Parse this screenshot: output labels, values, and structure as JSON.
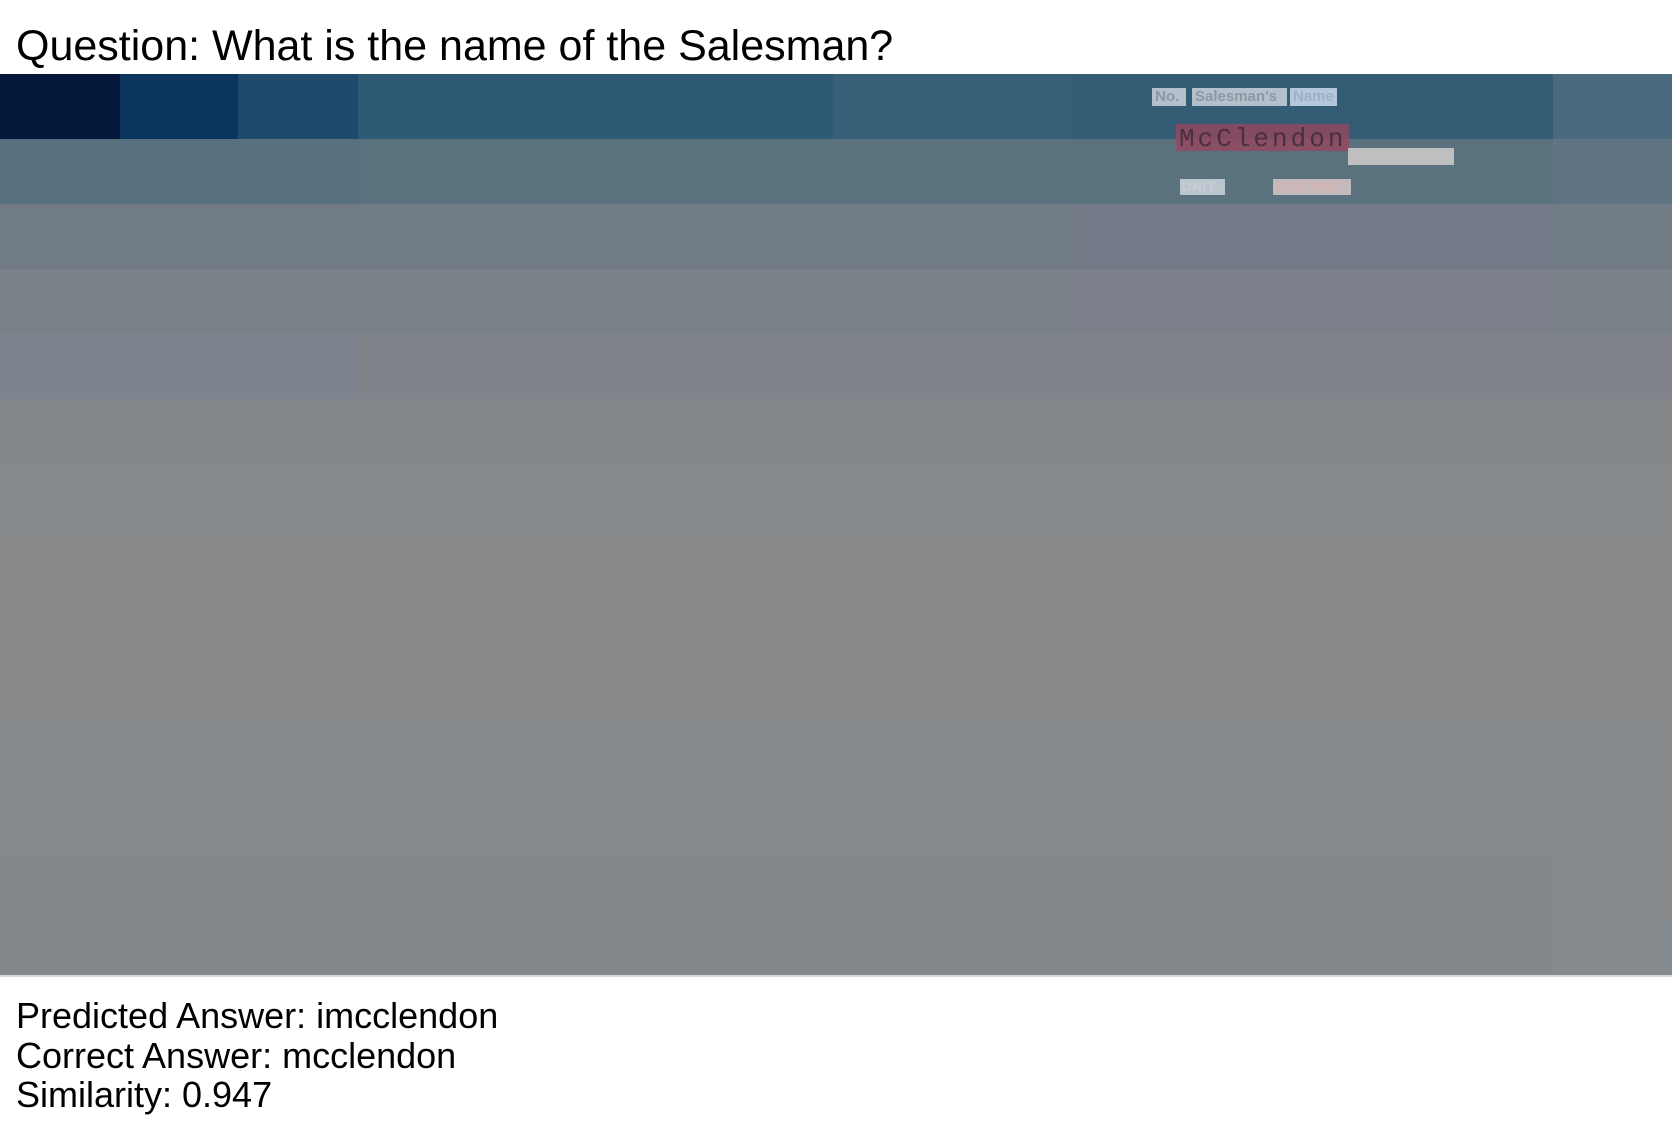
{
  "question": "Question: What is the name of the Salesman?",
  "document": {
    "header_fields": [
      "No.",
      "Salesman's",
      "Name"
    ],
    "salesman_name": "McClendon",
    "column_labels": [
      "UNIT",
      "SELLING"
    ]
  },
  "results": {
    "predicted": "Predicted Answer: imcclendon",
    "correct": "Correct Answer: mcclendon",
    "similarity": "Similarity: 0.947"
  }
}
